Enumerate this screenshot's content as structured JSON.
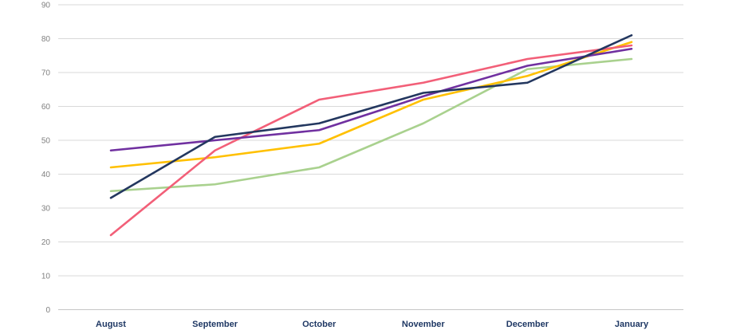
{
  "chart_data": {
    "type": "line",
    "title": "",
    "xlabel": "",
    "ylabel": "",
    "categories": [
      "August",
      "September",
      "October",
      "November",
      "December",
      "January"
    ],
    "series": [
      {
        "name": "green",
        "color": "#a9d18e",
        "values": [
          35,
          37,
          42,
          55,
          71,
          74
        ]
      },
      {
        "name": "gold",
        "color": "#ffc000",
        "values": [
          42,
          45,
          49,
          62,
          69,
          79
        ]
      },
      {
        "name": "pink",
        "color": "#f25f78",
        "values": [
          22,
          47,
          62,
          67,
          74,
          78
        ]
      },
      {
        "name": "purple",
        "color": "#7030a0",
        "values": [
          47,
          50,
          53,
          63,
          72,
          77
        ]
      },
      {
        "name": "navy",
        "color": "#23375f",
        "values": [
          33,
          51,
          55,
          64,
          67,
          81
        ]
      }
    ],
    "ylim": [
      0,
      90
    ],
    "yticks": [
      0,
      10,
      20,
      30,
      40,
      50,
      60,
      70,
      80,
      90
    ],
    "grid": true,
    "legend": "none",
    "style": {
      "grid_color": "#d9d9d9",
      "baseline_color": "#c6c6c6",
      "tick_label_color": "#7f7f7f",
      "category_label_color": "#1f3864",
      "background": "#ffffff"
    }
  }
}
